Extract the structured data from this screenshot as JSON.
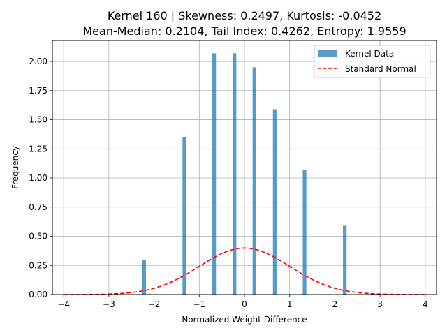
{
  "chart_data": {
    "type": "bar",
    "title_line1": "Kernel 160 | Skewness: 0.2497, Kurtosis: -0.0452",
    "title_line2": "Mean-Median: 0.2104, Tail Index: 0.4262, Entropy: 1.9559",
    "xlabel": "Normalized Weight Difference",
    "ylabel": "Frequency",
    "xlim": [
      -4.25,
      4.25
    ],
    "ylim": [
      0,
      2.18
    ],
    "xticks": [
      -4,
      -3,
      -2,
      -1,
      0,
      1,
      2,
      3,
      4
    ],
    "xtick_labels": [
      "−4",
      "−3",
      "−2",
      "−1",
      "0",
      "1",
      "2",
      "3",
      "4"
    ],
    "yticks": [
      0,
      0.25,
      0.5,
      0.75,
      1.0,
      1.25,
      1.5,
      1.75,
      2.0
    ],
    "ytick_labels": [
      "0.00",
      "0.25",
      "0.50",
      "0.75",
      "1.00",
      "1.25",
      "1.50",
      "1.75",
      "2.00"
    ],
    "grid": true,
    "legend_position": "top-right",
    "bar_width": 0.08,
    "series": [
      {
        "name": "Kernel Data",
        "kind": "bar",
        "color": "#1f77b4",
        "x": [
          -2.22,
          -1.33,
          -0.67,
          -0.22,
          0.22,
          0.67,
          1.33,
          2.22
        ],
        "values": [
          0.3,
          1.35,
          2.07,
          2.07,
          1.95,
          1.59,
          1.07,
          0.59
        ]
      },
      {
        "name": "Standard Normal",
        "kind": "line",
        "color": "#ff0000",
        "distribution": "normal",
        "mean": 0,
        "std": 1,
        "x_range": [
          -4,
          4
        ]
      }
    ]
  }
}
